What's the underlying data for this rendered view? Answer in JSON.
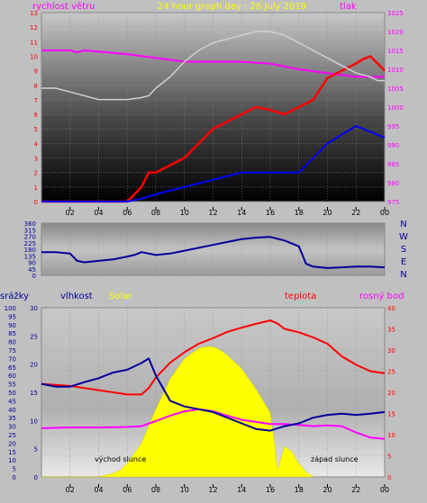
{
  "header": {
    "left_label": "rychlost větru",
    "title": "24 hour graph day : 26 July 2019",
    "right_label": "tlak"
  },
  "direction_labels": [
    "N",
    "W",
    "S",
    "E",
    "N"
  ],
  "bottom_labels": {
    "srazky": "srážky",
    "vlhkost": "vlhkost",
    "solar": "Solar",
    "teplota": "teplota",
    "rosny_bod": "rosný bod"
  },
  "annotations": {
    "sunrise": "východ slunce",
    "sunset": "západ slunce"
  },
  "colors": {
    "pressure": "#ff00ff",
    "temperature": "#ff0000",
    "dewpoint": "#ff00ff",
    "humidity": "#000099",
    "solar": "#ffff00",
    "wind": "#ff0000",
    "wind_avg": "#0000ff",
    "direction": "#000099",
    "radiation_bg": "#b4b4b4",
    "title": "#ffff00"
  },
  "chart_data": [
    {
      "type": "line",
      "name": "wind-pressure",
      "x_ticks": [
        "02",
        "04",
        "06",
        "08",
        "10",
        "12",
        "14",
        "16",
        "18",
        "20",
        "22",
        "00"
      ],
      "y_left_ticks": [
        0,
        1,
        2,
        3,
        4,
        5,
        6,
        7,
        8,
        9,
        10,
        11,
        12,
        13
      ],
      "y_left_range": [
        0,
        13
      ],
      "y_right_ticks": [
        975,
        980,
        985,
        990,
        995,
        1000,
        1005,
        1010,
        1015,
        1020,
        1025
      ],
      "y_right_range": [
        975,
        1025
      ],
      "series": [
        {
          "name": "tlak",
          "axis": "right",
          "x": [
            0,
            2,
            2.5,
            3,
            6,
            8,
            10,
            12,
            14,
            16,
            18,
            20,
            22,
            23.5,
            24
          ],
          "values": [
            1015,
            1015,
            1014.5,
            1015,
            1014,
            1013,
            1012,
            1012,
            1012,
            1011.5,
            1010,
            1009,
            1008,
            1008,
            1008
          ]
        },
        {
          "axis": "left",
          "x": [
            0,
            6,
            6.5,
            7,
            7.5,
            8,
            10,
            12,
            14,
            15,
            16,
            17,
            18,
            19,
            20,
            21,
            22,
            22.5,
            23,
            23.5,
            24
          ],
          "values": [
            0,
            0,
            0.5,
            1,
            2,
            2,
            3,
            5,
            6,
            6.5,
            6.3,
            6,
            6.5,
            7,
            8.5,
            9,
            9.5,
            9.8,
            10,
            9.5,
            9
          ]
        },
        {
          "axis": "left",
          "x": [
            0,
            6,
            7,
            8,
            10,
            12,
            14,
            16,
            18,
            20,
            22,
            24
          ],
          "values": [
            0,
            0,
            0.2,
            0.5,
            1,
            1.5,
            2,
            2,
            2,
            4,
            5.2,
            4.4
          ]
        },
        {
          "axis": "right",
          "x": [
            0,
            1,
            2,
            4,
            6,
            7,
            7.5,
            8,
            9,
            10,
            11,
            12,
            13,
            14,
            15,
            16,
            17,
            18,
            19,
            20,
            21,
            22,
            23,
            23.5,
            24
          ],
          "values": [
            1005,
            1005,
            1004,
            1002,
            1002,
            1002.5,
            1003,
            1005,
            1008,
            1012,
            1015,
            1017,
            1018,
            1019,
            1020,
            1020,
            1019,
            1017,
            1015,
            1013,
            1011,
            1009,
            1008,
            1007,
            1007
          ]
        }
      ]
    },
    {
      "type": "line",
      "name": "wind-direction",
      "y_ticks": [
        0,
        45,
        90,
        135,
        180,
        225,
        270,
        315,
        360
      ],
      "y_range": [
        0,
        360
      ],
      "series": [
        {
          "x": [
            0,
            1,
            2,
            2.5,
            3,
            4,
            5,
            6,
            6.5,
            7,
            7.5,
            8,
            9,
            10,
            11,
            12,
            13,
            14,
            15,
            16,
            17,
            18,
            18.5,
            19,
            20,
            21,
            22,
            23,
            24
          ],
          "values": [
            160,
            160,
            150,
            100,
            90,
            100,
            110,
            130,
            140,
            160,
            150,
            140,
            150,
            170,
            190,
            210,
            230,
            250,
            260,
            265,
            240,
            200,
            80,
            60,
            50,
            55,
            60,
            60,
            55
          ]
        }
      ]
    },
    {
      "type": "line",
      "name": "temperature-humidity-solar",
      "x_ticks": [
        "02",
        "04",
        "06",
        "08",
        "10",
        "12",
        "14",
        "16",
        "18",
        "20",
        "22",
        "00"
      ],
      "y_srazky_ticks": [
        0,
        5,
        10,
        15,
        20,
        25,
        30,
        35,
        40,
        45,
        50,
        55,
        60,
        65,
        70,
        75,
        80,
        85,
        90,
        95,
        100
      ],
      "y_srazky_range": [
        0,
        100
      ],
      "y_vlhkost_ticks": [
        0,
        5,
        10,
        15,
        20,
        25,
        30
      ],
      "y_vlhkost_range": [
        0,
        30
      ],
      "y_right_ticks": [
        0,
        5,
        10,
        15,
        20,
        25,
        30,
        35,
        40
      ],
      "y_right_range": [
        0,
        40
      ],
      "series": [
        {
          "name": "teplota",
          "axis": "right",
          "x": [
            0,
            2,
            4,
            5,
            6,
            7,
            7.5,
            8,
            9,
            10,
            11,
            12,
            13,
            14,
            15,
            16,
            16.5,
            17,
            18,
            19,
            20,
            21,
            22,
            23,
            24
          ],
          "values": [
            22,
            21.5,
            20.5,
            20,
            19.5,
            19.5,
            21,
            23.5,
            27,
            29.5,
            31.5,
            32.8,
            34.3,
            35.3,
            36.2,
            37,
            36.3,
            35,
            34.2,
            33,
            31.5,
            28.5,
            26.5,
            25,
            24.5
          ]
        },
        {
          "name": "rosný bod",
          "axis": "right",
          "x": [
            0,
            2,
            4,
            6,
            7,
            8,
            9,
            10,
            11,
            12,
            13,
            14,
            15,
            16,
            17,
            18,
            19,
            20,
            21,
            22,
            23,
            24
          ],
          "values": [
            11.5,
            11.7,
            11.7,
            11.8,
            12,
            13.2,
            14.5,
            15.5,
            16,
            15.5,
            14.5,
            13.5,
            13,
            12.5,
            12.5,
            12.3,
            12,
            12.2,
            12,
            10.5,
            9.3,
            9
          ]
        },
        {
          "name": "vlhkost",
          "axis": "vlhkost",
          "x": [
            0,
            1,
            2,
            3,
            4,
            5,
            6,
            7,
            7.5,
            8,
            9,
            10,
            11,
            12,
            13,
            14,
            15,
            16,
            17,
            18,
            19,
            20,
            21,
            22,
            23,
            24
          ],
          "values": [
            16.5,
            16,
            16,
            16.8,
            17.5,
            18.5,
            19,
            20.2,
            21,
            18,
            13.5,
            12.5,
            12,
            11.5,
            10.5,
            9.5,
            8.5,
            8.2,
            9,
            9.5,
            10.5,
            11,
            11.2,
            11,
            11.2,
            11.5
          ]
        },
        {
          "name": "Solar",
          "axis": "srazky",
          "x": [
            0,
            4,
            4.5,
            5,
            5.5,
            6,
            7,
            8,
            9,
            10,
            11,
            11.5,
            12,
            12.5,
            13,
            14,
            15,
            16,
            16.3,
            16.5,
            17,
            17.5,
            18,
            18.5,
            19
          ],
          "values": [
            0,
            0,
            1,
            2,
            4,
            8,
            20,
            40,
            58,
            70,
            76,
            77,
            77,
            75,
            72,
            64,
            52,
            38,
            20,
            4,
            18,
            15,
            8,
            3,
            0
          ]
        }
      ]
    }
  ]
}
